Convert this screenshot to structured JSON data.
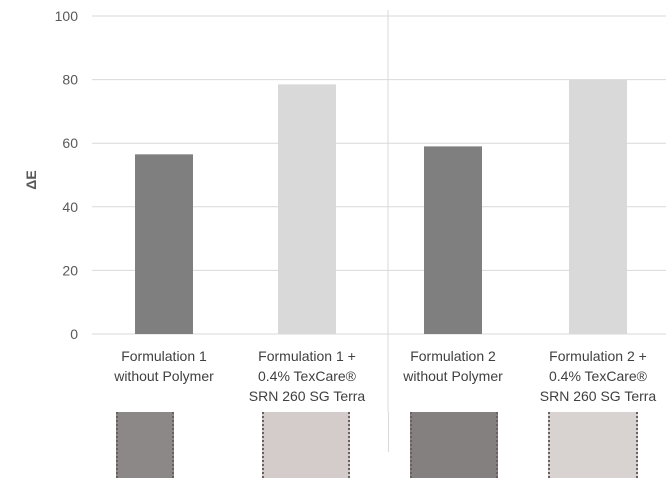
{
  "chart_data": {
    "type": "bar",
    "ylabel": "ΔE",
    "ylim": [
      0,
      100
    ],
    "yticks": [
      0,
      20,
      40,
      60,
      80,
      100
    ],
    "grid": true,
    "categories": [
      [
        "Formulation 1",
        "without Polymer"
      ],
      [
        "Formulation 1 +",
        "0.4% TexCare®",
        "SRN 260 SG Terra"
      ],
      [
        "Formulation 2",
        "without Polymer"
      ],
      [
        "Formulation 2 +",
        "0.4% TexCare®",
        "SRN 260 SG Terra"
      ]
    ],
    "values": [
      56.5,
      78.5,
      59,
      80
    ],
    "bar_colors": [
      "#7f7f7f",
      "#d9d9d9",
      "#7f7f7f",
      "#d9d9d9"
    ],
    "fabric_swatch_colors": [
      "#8c8888",
      "#d4cccb",
      "#858080",
      "#d8d2d1"
    ],
    "group_divider": true
  }
}
